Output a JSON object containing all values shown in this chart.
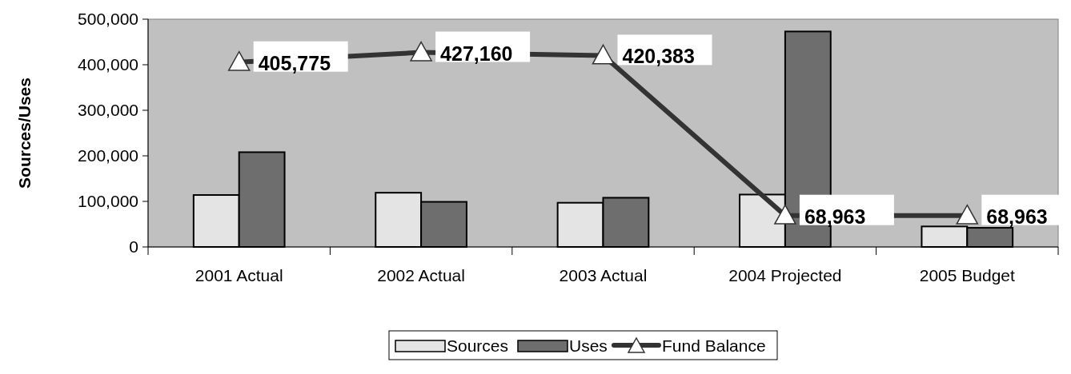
{
  "chart_data": {
    "type": "bar",
    "ylabel": "Sources/Uses",
    "categories": [
      "2001 Actual",
      "2002 Actual",
      "2003 Actual",
      "2004 Projected",
      "2005 Budget"
    ],
    "series": [
      {
        "name": "Sources",
        "color": "#e4e4e4",
        "values": [
          114000,
          119000,
          97000,
          115000,
          45000
        ]
      },
      {
        "name": "Uses",
        "color": "#6e6e6e",
        "values": [
          208000,
          99000,
          108000,
          473000,
          42000
        ]
      },
      {
        "name": "Fund Balance",
        "type": "line",
        "color": "#333333",
        "values": [
          405775,
          427160,
          420383,
          68963,
          68963
        ],
        "value_labels": [
          "405,775",
          "427,160",
          "420,383",
          "68,963",
          "68,963"
        ],
        "marker": "triangle"
      }
    ],
    "ylim": [
      0,
      500000
    ],
    "yticks": [
      {
        "value": 0,
        "label": "0"
      },
      {
        "value": 100000,
        "label": "100,000"
      },
      {
        "value": 200000,
        "label": "200,000"
      },
      {
        "value": 300000,
        "label": "300,000"
      },
      {
        "value": 400000,
        "label": "400,000"
      },
      {
        "value": 500000,
        "label": "500,000"
      }
    ],
    "grid": false,
    "legend": "bottom"
  }
}
